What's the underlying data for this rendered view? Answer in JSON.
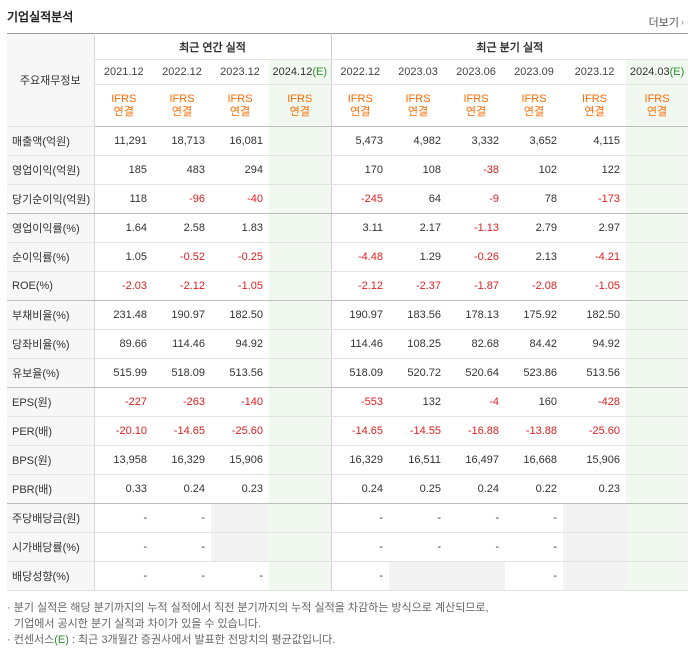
{
  "title": "기업실적분석",
  "more_label": "더보기",
  "head_label": "주요재무정보",
  "groups": {
    "annual": "최근 연간 실적",
    "quarter": "최근 분기 실적"
  },
  "annual_periods": [
    "2021.12",
    "2022.12",
    "2023.12",
    "2024.12"
  ],
  "quarter_periods": [
    "2022.12",
    "2023.03",
    "2023.06",
    "2023.09",
    "2023.12",
    "2024.03"
  ],
  "est_mark": "(E)",
  "ifrs": {
    "line1": "IFRS",
    "line2": "연결"
  },
  "rows": [
    {
      "label": "매출액(억원)",
      "vals": [
        "11,291",
        "18,713",
        "16,081",
        "",
        "5,473",
        "4,982",
        "3,332",
        "3,652",
        "4,115",
        ""
      ]
    },
    {
      "label": "영업이익(억원)",
      "vals": [
        "185",
        "483",
        "294",
        "",
        "170",
        "108",
        "-38",
        "102",
        "122",
        ""
      ]
    },
    {
      "label": "당기순이익(억원)",
      "vals": [
        "118",
        "-96",
        "-40",
        "",
        "-245",
        "64",
        "-9",
        "78",
        "-173",
        ""
      ]
    },
    {
      "label": "영업이익률(%)",
      "vals": [
        "1.64",
        "2.58",
        "1.83",
        "",
        "3.11",
        "2.17",
        "-1.13",
        "2.79",
        "2.97",
        ""
      ]
    },
    {
      "label": "순이익률(%)",
      "vals": [
        "1.05",
        "-0.52",
        "-0.25",
        "",
        "-4.48",
        "1.29",
        "-0.26",
        "2.13",
        "-4.21",
        ""
      ]
    },
    {
      "label": "ROE(%)",
      "vals": [
        "-2.03",
        "-2.12",
        "-1.05",
        "",
        "-2.12",
        "-2.37",
        "-1.87",
        "-2.08",
        "-1.05",
        ""
      ]
    },
    {
      "label": "부채비율(%)",
      "vals": [
        "231.48",
        "190.97",
        "182.50",
        "",
        "190.97",
        "183.56",
        "178.13",
        "175.92",
        "182.50",
        ""
      ]
    },
    {
      "label": "당좌비율(%)",
      "vals": [
        "89.66",
        "114.46",
        "94.92",
        "",
        "114.46",
        "108.25",
        "82.68",
        "84.42",
        "94.92",
        ""
      ]
    },
    {
      "label": "유보율(%)",
      "vals": [
        "515.99",
        "518.09",
        "513.56",
        "",
        "518.09",
        "520.72",
        "520.64",
        "523.86",
        "513.56",
        ""
      ]
    },
    {
      "label": "EPS(원)",
      "vals": [
        "-227",
        "-263",
        "-140",
        "",
        "-553",
        "132",
        "-4",
        "160",
        "-428",
        ""
      ]
    },
    {
      "label": "PER(배)",
      "vals": [
        "-20.10",
        "-14.65",
        "-25.60",
        "",
        "-14.65",
        "-14.55",
        "-16.88",
        "-13.88",
        "-25.60",
        ""
      ]
    },
    {
      "label": "BPS(원)",
      "vals": [
        "13,958",
        "16,329",
        "15,906",
        "",
        "16,329",
        "16,511",
        "16,497",
        "16,668",
        "15,906",
        ""
      ]
    },
    {
      "label": "PBR(배)",
      "vals": [
        "0.33",
        "0.24",
        "0.23",
        "",
        "0.24",
        "0.25",
        "0.24",
        "0.22",
        "0.23",
        ""
      ]
    },
    {
      "label": "주당배당금(원)",
      "vals": [
        "-",
        "-",
        "",
        "",
        "-",
        "-",
        "-",
        "-",
        "",
        ""
      ]
    },
    {
      "label": "시가배당률(%)",
      "vals": [
        "-",
        "-",
        "",
        "",
        "-",
        "-",
        "-",
        "-",
        "",
        ""
      ]
    },
    {
      "label": "배당성향(%)",
      "vals": [
        "-",
        "-",
        "-",
        "",
        "-",
        "",
        "",
        "-",
        "",
        ""
      ]
    }
  ],
  "notes": {
    "line1": "· 분기 실적은 해당 분기까지의 누적 실적에서 직전 분기까지의 누적 실적을 차감하는 방식으로 계산되므로,",
    "line2": "기업에서 공시한 분기 실적과 차이가 있을 수 있습니다.",
    "line3_a": "· 컨센서스",
    "line3_e": "(E)",
    "line3_b": ": 최근 3개월간 증권사에서 발표한 전망치의 평균값입니다."
  }
}
